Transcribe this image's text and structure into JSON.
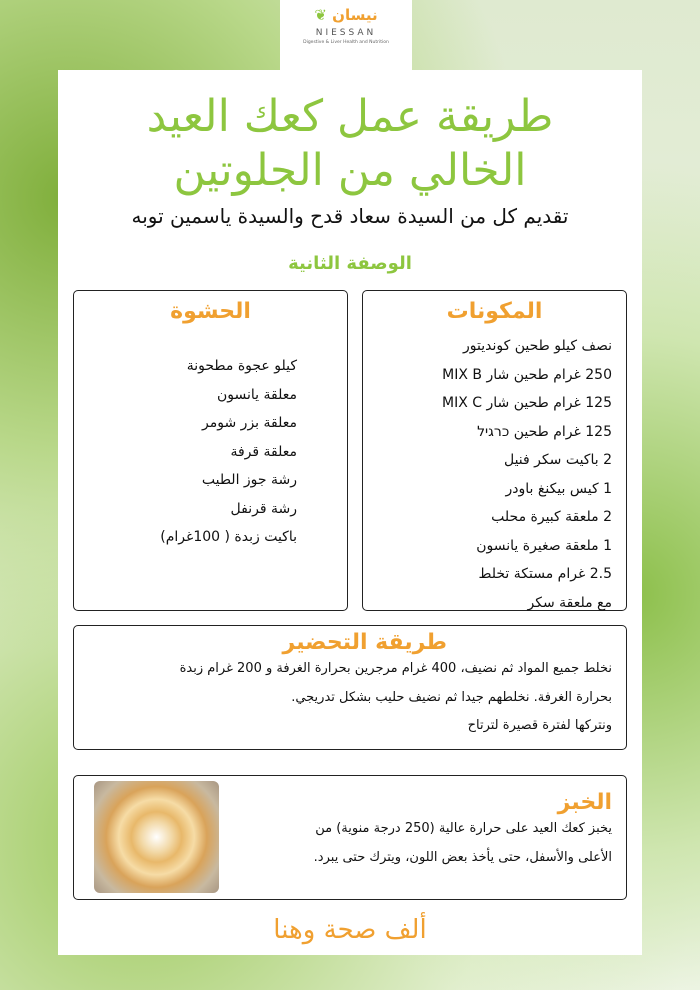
{
  "logo": {
    "arabic": "نيسان",
    "name": "NIESSAN",
    "tagline": "Digestive & Liver Health and Nutrition"
  },
  "title": [
    "طريقة عمل كعك العيد",
    "الخالي من الجلوتين"
  ],
  "subtitle": "تقديم كل من السيدة سعاد قدح والسيدة ياسمين توبه",
  "recipe_label": "الوصفة الثانية",
  "ingredients": {
    "heading": "المكونات",
    "items": [
      "نصف كيلو طحين كونديتور",
      "250 غرام طحين شار MIX B",
      "125 غرام طحين شار MIX C",
      "125 غرام طحين כרגיל",
      "2 باكيت سكر فنيل",
      "1 كيس بيكنغ باودر",
      "2 ملعقة كبيرة محلب",
      "1 ملعقة صغيرة يانسون",
      "2.5 غرام مستكة تخلط",
      "مع ملعقة سكر"
    ]
  },
  "filling": {
    "heading": "الحشوة",
    "items": [
      "كيلو عجوة مطحونة",
      "معلقة يانسون",
      "معلقة بزر شومر",
      "معلقة قرفة",
      "رشة جوز الطيب",
      "رشة قرنفل",
      "باكيت زبدة ( 100غرام)"
    ]
  },
  "preparation": {
    "heading": "طريقة التحضير",
    "lines": [
      "نخلط جميع المواد ثم نضيف، 400 غرام مرجرين بحرارة الغرفة و 200 غرام زبدة",
      "بحرارة الغرفة. نخلطهم جيدا ثم نضيف حليب بشكل تدريجي.",
      "ونتركها لفترة قصيرة لترتاح"
    ]
  },
  "baking": {
    "heading": "الخبز",
    "lines": [
      "يخبز كعك العيد على حرارة عالية (250 درجة منوية) من",
      "الأعلى والأسفل، حتى يأخذ بعض اللون، ويترك حتى يبرد."
    ]
  },
  "footer": "ألف صحة وهنا",
  "colors": {
    "green": "#8dc63f",
    "orange": "#f0a030"
  }
}
